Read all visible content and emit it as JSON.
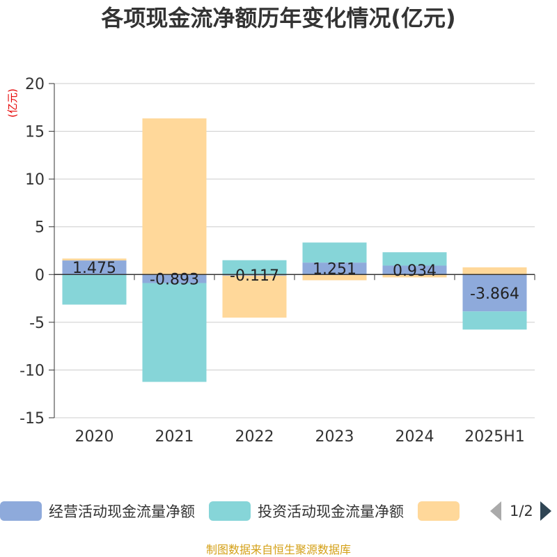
{
  "title": "各项现金流净额历年变化情况(亿元)",
  "source": "制图数据来自恒生聚源数据库",
  "pager": {
    "text": "1/2"
  },
  "chart_data": {
    "type": "bar",
    "stacked": true,
    "title": "各项现金流净额历年变化情况(亿元)",
    "ylabel": "(亿元)",
    "ylim": [
      -15,
      20
    ],
    "yticks": [
      -15,
      -10,
      -5,
      0,
      5,
      10,
      15,
      20
    ],
    "grid": true,
    "legend_position": "bottom",
    "categories": [
      "2020",
      "2021",
      "2022",
      "2023",
      "2024",
      "2025H1"
    ],
    "series": [
      {
        "name": "经营活动现金流量净额",
        "color": "#8eaadb",
        "values": [
          1.475,
          -0.893,
          -0.117,
          1.251,
          0.934,
          -3.864
        ],
        "labels": [
          "1.475",
          "-0.893",
          "-0.117",
          "1.251",
          "0.934",
          "-3.864"
        ]
      },
      {
        "name": "投资活动现金流量净额",
        "color": "#86d5d8",
        "values": [
          -3.15,
          -10.35,
          1.5,
          2.1,
          1.4,
          -1.9
        ]
      },
      {
        "name": "",
        "color": "#ffd89a",
        "values": [
          0.2,
          16.35,
          -4.4,
          -0.6,
          -0.3,
          0.75
        ]
      }
    ]
  }
}
